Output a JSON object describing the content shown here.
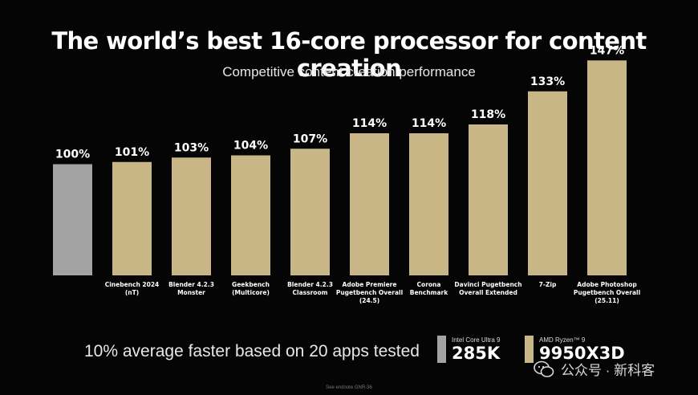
{
  "title": "The world’s best 16-core processor for content creation",
  "subtitle": "Competitive content creation performance",
  "chart_data": {
    "type": "bar",
    "categories": [
      [
        ""
      ],
      [
        "Cinebench 2024",
        "(nT)"
      ],
      [
        "Blender 4.2.3",
        "Monster"
      ],
      [
        "Geekbench",
        "(Multicore)"
      ],
      [
        "Blender 4.2.3",
        "Classroom"
      ],
      [
        "Adobe Premiere",
        "Pugetbench Overall",
        "(24.5)"
      ],
      [
        "Corona",
        "Benchmark"
      ],
      [
        "Davinci Pugetbench",
        "Overall Extended"
      ],
      [
        "7-Zip"
      ],
      [
        "Adobe Photoshop",
        "Pugetbench Overall",
        "(25.11)"
      ]
    ],
    "values": [
      100,
      101,
      103,
      104,
      107,
      114,
      114,
      118,
      133,
      147
    ],
    "data_labels": [
      "100%",
      "101%",
      "103%",
      "104%",
      "107%",
      "114%",
      "114%",
      "118%",
      "133%",
      "147%"
    ],
    "bar_colors": [
      "#a3a3a3",
      "#c8b686",
      "#c8b686",
      "#c8b686",
      "#c8b686",
      "#c8b686",
      "#c8b686",
      "#c8b686",
      "#c8b686",
      "#c8b686"
    ],
    "ylim": [
      0,
      150
    ],
    "grid": false
  },
  "footnote": "10% average faster based on 20 apps tested",
  "legend": [
    {
      "small": "Intel Core Ultra 9",
      "big": "285K",
      "color": "#a3a3a3"
    },
    {
      "small": "AMD Ryzen™ 9",
      "big": "9950X3D",
      "color": "#c8b686"
    }
  ],
  "watermark": "公众号 · 新科客",
  "source_note": "See endnote GNR-36"
}
